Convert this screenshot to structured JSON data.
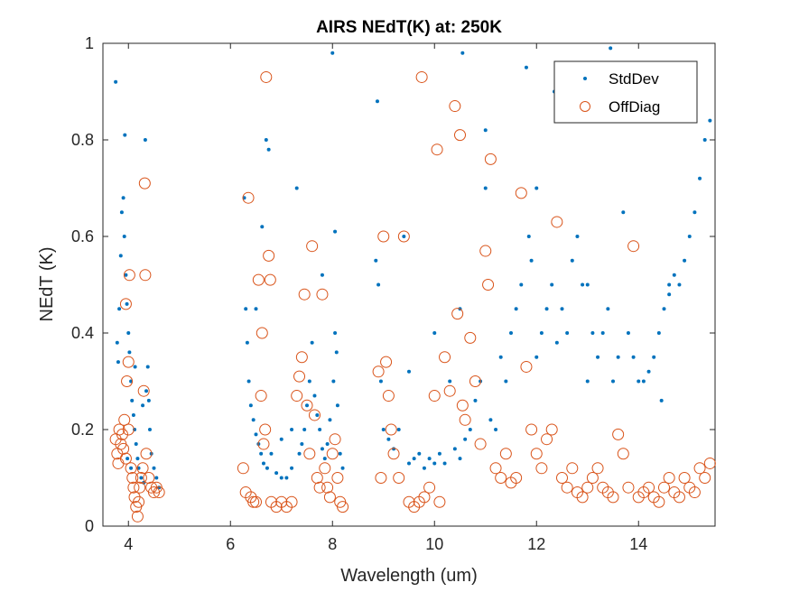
{
  "chart_data": {
    "type": "scatter",
    "title": "AIRS NEdT(K) at: 250K",
    "xlabel": "Wavelength (um)",
    "ylabel": "NEdT (K)",
    "xlim": [
      3.5,
      15.5
    ],
    "ylim": [
      0,
      1
    ],
    "xticks": [
      4,
      6,
      8,
      10,
      12,
      14
    ],
    "xtick_labels": [
      "4",
      "6",
      "8",
      "10",
      "12",
      "14"
    ],
    "yticks": [
      0,
      0.2,
      0.4,
      0.6,
      0.8,
      1
    ],
    "ytick_labels": [
      "0",
      "0.2",
      "0.4",
      "0.6",
      "0.8",
      "1"
    ],
    "grid": false,
    "legend_position": "top-right",
    "series": [
      {
        "name": "StdDev",
        "marker": "dot",
        "color": "#0072BD",
        "points": [
          [
            3.75,
            0.92
          ],
          [
            3.78,
            0.38
          ],
          [
            3.8,
            0.34
          ],
          [
            3.82,
            0.45
          ],
          [
            3.85,
            0.56
          ],
          [
            3.87,
            0.65
          ],
          [
            3.9,
            0.68
          ],
          [
            3.92,
            0.6
          ],
          [
            3.95,
            0.52
          ],
          [
            3.97,
            0.46
          ],
          [
            4.0,
            0.4
          ],
          [
            4.02,
            0.36
          ],
          [
            4.05,
            0.3
          ],
          [
            4.07,
            0.26
          ],
          [
            4.1,
            0.23
          ],
          [
            4.12,
            0.2
          ],
          [
            4.15,
            0.17
          ],
          [
            4.18,
            0.14
          ],
          [
            4.2,
            0.12
          ],
          [
            4.25,
            0.1
          ],
          [
            4.3,
            0.09
          ],
          [
            4.33,
            0.8
          ],
          [
            4.35,
            0.28
          ],
          [
            4.38,
            0.33
          ],
          [
            4.4,
            0.26
          ],
          [
            4.42,
            0.2
          ],
          [
            4.45,
            0.15
          ],
          [
            4.5,
            0.12
          ],
          [
            4.55,
            0.1
          ],
          [
            4.6,
            0.08
          ],
          [
            3.93,
            0.81
          ],
          [
            4.28,
            0.25
          ],
          [
            3.98,
            0.14
          ],
          [
            4.05,
            0.12
          ],
          [
            4.13,
            0.33
          ],
          [
            6.27,
            0.68
          ],
          [
            6.3,
            0.45
          ],
          [
            6.33,
            0.38
          ],
          [
            6.36,
            0.3
          ],
          [
            6.4,
            0.25
          ],
          [
            6.45,
            0.22
          ],
          [
            6.5,
            0.19
          ],
          [
            6.55,
            0.17
          ],
          [
            6.6,
            0.15
          ],
          [
            6.65,
            0.13
          ],
          [
            6.7,
            0.8
          ],
          [
            6.72,
            0.12
          ],
          [
            6.75,
            0.78
          ],
          [
            6.8,
            0.15
          ],
          [
            6.9,
            0.11
          ],
          [
            7.0,
            0.1
          ],
          [
            7.1,
            0.1
          ],
          [
            7.2,
            0.12
          ],
          [
            7.3,
            0.7
          ],
          [
            7.35,
            0.15
          ],
          [
            7.4,
            0.17
          ],
          [
            7.45,
            0.2
          ],
          [
            7.5,
            0.25
          ],
          [
            7.55,
            0.3
          ],
          [
            7.6,
            0.38
          ],
          [
            7.65,
            0.27
          ],
          [
            7.7,
            0.23
          ],
          [
            7.75,
            0.2
          ],
          [
            7.8,
            0.16
          ],
          [
            7.85,
            0.14
          ],
          [
            7.9,
            0.17
          ],
          [
            7.95,
            0.22
          ],
          [
            8.0,
            0.98
          ],
          [
            8.02,
            0.3
          ],
          [
            8.05,
            0.4
          ],
          [
            8.08,
            0.36
          ],
          [
            8.1,
            0.25
          ],
          [
            8.15,
            0.15
          ],
          [
            8.2,
            0.12
          ],
          [
            6.5,
            0.45
          ],
          [
            6.62,
            0.62
          ],
          [
            7.0,
            0.18
          ],
          [
            7.2,
            0.2
          ],
          [
            7.8,
            0.52
          ],
          [
            8.05,
            0.61
          ],
          [
            8.85,
            0.55
          ],
          [
            8.88,
            0.88
          ],
          [
            8.9,
            0.5
          ],
          [
            8.95,
            0.3
          ],
          [
            9.0,
            0.2
          ],
          [
            9.1,
            0.18
          ],
          [
            9.2,
            0.16
          ],
          [
            9.3,
            0.2
          ],
          [
            9.4,
            0.6
          ],
          [
            9.5,
            0.13
          ],
          [
            9.6,
            0.14
          ],
          [
            9.7,
            0.15
          ],
          [
            9.8,
            0.12
          ],
          [
            9.9,
            0.14
          ],
          [
            10.0,
            0.13
          ],
          [
            10.1,
            0.15
          ],
          [
            10.2,
            0.13
          ],
          [
            10.3,
            0.3
          ],
          [
            10.4,
            0.16
          ],
          [
            10.5,
            0.14
          ],
          [
            10.55,
            0.98
          ],
          [
            10.6,
            0.18
          ],
          [
            10.7,
            0.2
          ],
          [
            10.8,
            0.26
          ],
          [
            10.9,
            0.3
          ],
          [
            11.0,
            0.82
          ],
          [
            11.1,
            0.22
          ],
          [
            11.2,
            0.2
          ],
          [
            11.3,
            0.35
          ],
          [
            11.4,
            0.3
          ],
          [
            11.5,
            0.4
          ],
          [
            11.6,
            0.45
          ],
          [
            11.7,
            0.5
          ],
          [
            11.8,
            0.95
          ],
          [
            11.85,
            0.6
          ],
          [
            11.9,
            0.55
          ],
          [
            12.0,
            0.35
          ],
          [
            12.1,
            0.4
          ],
          [
            12.2,
            0.45
          ],
          [
            12.3,
            0.5
          ],
          [
            12.35,
            0.9
          ],
          [
            12.4,
            0.38
          ],
          [
            12.5,
            0.45
          ],
          [
            12.6,
            0.4
          ],
          [
            12.7,
            0.55
          ],
          [
            12.8,
            0.6
          ],
          [
            12.9,
            0.5
          ],
          [
            13.0,
            0.3
          ],
          [
            13.1,
            0.4
          ],
          [
            13.2,
            0.35
          ],
          [
            13.3,
            0.4
          ],
          [
            13.4,
            0.45
          ],
          [
            13.45,
            0.99
          ],
          [
            13.5,
            0.3
          ],
          [
            13.6,
            0.35
          ],
          [
            13.7,
            0.65
          ],
          [
            13.8,
            0.4
          ],
          [
            13.9,
            0.35
          ],
          [
            14.0,
            0.3
          ],
          [
            14.1,
            0.3
          ],
          [
            14.2,
            0.32
          ],
          [
            14.3,
            0.35
          ],
          [
            14.4,
            0.4
          ],
          [
            14.45,
            0.26
          ],
          [
            14.5,
            0.45
          ],
          [
            14.6,
            0.5
          ],
          [
            14.7,
            0.52
          ],
          [
            14.8,
            0.5
          ],
          [
            14.9,
            0.55
          ],
          [
            15.0,
            0.6
          ],
          [
            15.1,
            0.65
          ],
          [
            15.2,
            0.72
          ],
          [
            15.3,
            0.8
          ],
          [
            15.4,
            0.84
          ],
          [
            9.5,
            0.32
          ],
          [
            10.0,
            0.4
          ],
          [
            10.5,
            0.45
          ],
          [
            11.0,
            0.7
          ],
          [
            12.0,
            0.7
          ],
          [
            12.6,
            0.85
          ],
          [
            13.0,
            0.5
          ],
          [
            14.6,
            0.48
          ]
        ]
      },
      {
        "name": "OffDiag",
        "marker": "circle",
        "color": "#D95319",
        "points": [
          [
            3.75,
            0.18
          ],
          [
            3.78,
            0.15
          ],
          [
            3.8,
            0.13
          ],
          [
            3.82,
            0.2
          ],
          [
            3.85,
            0.17
          ],
          [
            3.88,
            0.19
          ],
          [
            3.9,
            0.16
          ],
          [
            3.92,
            0.22
          ],
          [
            3.95,
            0.14
          ],
          [
            3.97,
            0.3
          ],
          [
            4.0,
            0.2
          ],
          [
            4.02,
            0.52
          ],
          [
            4.05,
            0.12
          ],
          [
            4.08,
            0.1
          ],
          [
            4.1,
            0.08
          ],
          [
            4.12,
            0.06
          ],
          [
            4.15,
            0.04
          ],
          [
            4.18,
            0.02
          ],
          [
            4.2,
            0.05
          ],
          [
            4.22,
            0.08
          ],
          [
            4.25,
            0.1
          ],
          [
            4.28,
            0.12
          ],
          [
            4.3,
            0.28
          ],
          [
            4.32,
            0.71
          ],
          [
            4.33,
            0.52
          ],
          [
            4.35,
            0.15
          ],
          [
            4.4,
            0.1
          ],
          [
            4.45,
            0.08
          ],
          [
            4.5,
            0.07
          ],
          [
            4.55,
            0.08
          ],
          [
            4.6,
            0.07
          ],
          [
            3.95,
            0.46
          ],
          [
            4.0,
            0.34
          ],
          [
            6.25,
            0.12
          ],
          [
            6.3,
            0.07
          ],
          [
            6.35,
            0.68
          ],
          [
            6.4,
            0.06
          ],
          [
            6.45,
            0.05
          ],
          [
            6.5,
            0.05
          ],
          [
            6.55,
            0.51
          ],
          [
            6.6,
            0.27
          ],
          [
            6.62,
            0.4
          ],
          [
            6.65,
            0.17
          ],
          [
            6.68,
            0.2
          ],
          [
            6.7,
            0.93
          ],
          [
            6.75,
            0.56
          ],
          [
            6.78,
            0.51
          ],
          [
            6.8,
            0.05
          ],
          [
            6.9,
            0.04
          ],
          [
            7.0,
            0.05
          ],
          [
            7.1,
            0.04
          ],
          [
            7.2,
            0.05
          ],
          [
            7.3,
            0.27
          ],
          [
            7.35,
            0.31
          ],
          [
            7.4,
            0.35
          ],
          [
            7.45,
            0.48
          ],
          [
            7.5,
            0.25
          ],
          [
            7.55,
            0.15
          ],
          [
            7.6,
            0.58
          ],
          [
            7.65,
            0.23
          ],
          [
            7.7,
            0.1
          ],
          [
            7.75,
            0.08
          ],
          [
            7.8,
            0.48
          ],
          [
            7.85,
            0.12
          ],
          [
            7.9,
            0.08
          ],
          [
            7.95,
            0.06
          ],
          [
            8.0,
            0.15
          ],
          [
            8.05,
            0.18
          ],
          [
            8.1,
            0.1
          ],
          [
            8.15,
            0.05
          ],
          [
            8.2,
            0.04
          ],
          [
            8.9,
            0.32
          ],
          [
            8.95,
            0.1
          ],
          [
            9.0,
            0.6
          ],
          [
            9.05,
            0.34
          ],
          [
            9.1,
            0.27
          ],
          [
            9.15,
            0.2
          ],
          [
            9.2,
            0.15
          ],
          [
            9.3,
            0.1
          ],
          [
            9.4,
            0.6
          ],
          [
            9.5,
            0.05
          ],
          [
            9.6,
            0.04
          ],
          [
            9.7,
            0.05
          ],
          [
            9.75,
            0.93
          ],
          [
            9.8,
            0.06
          ],
          [
            9.9,
            0.08
          ],
          [
            10.0,
            0.27
          ],
          [
            10.05,
            0.78
          ],
          [
            10.1,
            0.05
          ],
          [
            10.2,
            0.35
          ],
          [
            10.3,
            0.28
          ],
          [
            10.4,
            0.87
          ],
          [
            10.45,
            0.44
          ],
          [
            10.5,
            0.81
          ],
          [
            10.55,
            0.25
          ],
          [
            10.6,
            0.22
          ],
          [
            10.7,
            0.39
          ],
          [
            10.8,
            0.3
          ],
          [
            10.9,
            0.17
          ],
          [
            11.0,
            0.57
          ],
          [
            11.05,
            0.5
          ],
          [
            11.1,
            0.76
          ],
          [
            11.2,
            0.12
          ],
          [
            11.3,
            0.1
          ],
          [
            11.4,
            0.15
          ],
          [
            11.5,
            0.09
          ],
          [
            11.6,
            0.1
          ],
          [
            11.7,
            0.69
          ],
          [
            11.8,
            0.33
          ],
          [
            11.9,
            0.2
          ],
          [
            12.0,
            0.15
          ],
          [
            12.1,
            0.12
          ],
          [
            12.2,
            0.18
          ],
          [
            12.3,
            0.2
          ],
          [
            12.4,
            0.63
          ],
          [
            12.5,
            0.1
          ],
          [
            12.6,
            0.08
          ],
          [
            12.7,
            0.12
          ],
          [
            12.8,
            0.07
          ],
          [
            12.9,
            0.06
          ],
          [
            13.0,
            0.08
          ],
          [
            13.1,
            0.1
          ],
          [
            13.2,
            0.12
          ],
          [
            13.3,
            0.08
          ],
          [
            13.4,
            0.07
          ],
          [
            13.5,
            0.06
          ],
          [
            13.6,
            0.19
          ],
          [
            13.7,
            0.15
          ],
          [
            13.8,
            0.08
          ],
          [
            13.9,
            0.58
          ],
          [
            14.0,
            0.06
          ],
          [
            14.1,
            0.07
          ],
          [
            14.2,
            0.08
          ],
          [
            14.3,
            0.06
          ],
          [
            14.4,
            0.05
          ],
          [
            14.5,
            0.08
          ],
          [
            14.6,
            0.1
          ],
          [
            14.7,
            0.07
          ],
          [
            14.8,
            0.06
          ],
          [
            14.9,
            0.1
          ],
          [
            15.0,
            0.08
          ],
          [
            15.1,
            0.07
          ],
          [
            15.2,
            0.12
          ],
          [
            15.3,
            0.1
          ],
          [
            15.4,
            0.13
          ]
        ]
      }
    ]
  }
}
